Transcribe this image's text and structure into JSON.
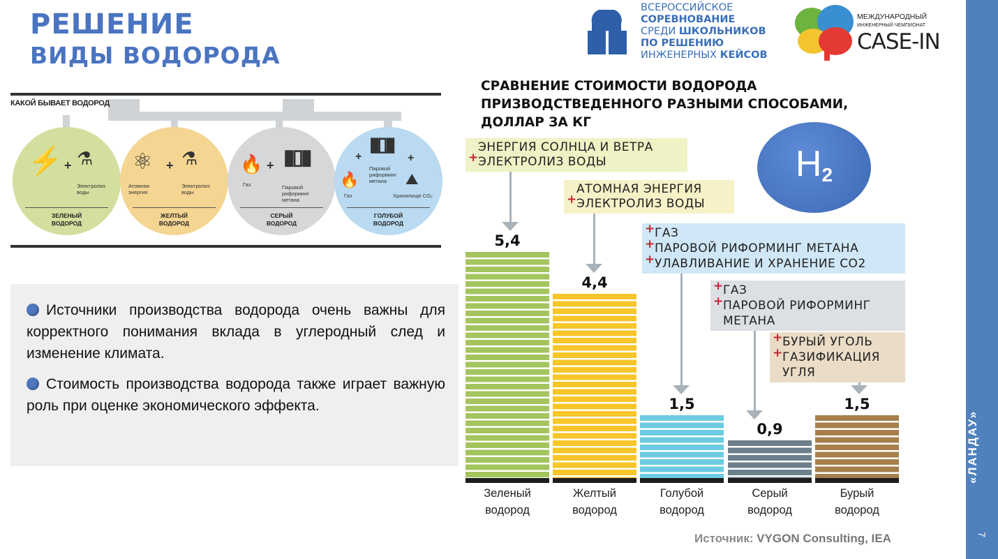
{
  "header": {
    "title_line1": "РЕШЕНИЕ",
    "title_line2": "ВИДЫ ВОДОРОДА"
  },
  "logos": {
    "competition": [
      "ВСЕРОССИЙСКОЕ",
      "СОРЕВНОВАНИЕ",
      "СРЕДИ ",
      "ШКОЛЬНИКОВ",
      "ПО РЕШЕНИЮ",
      "ИНЖЕНЕРНЫХ ",
      "КЕЙСОВ"
    ],
    "casein": {
      "line1": "МЕЖДУНАРОДНЫЙ",
      "line2": "ИНЖЕНЕРНЫЙ ЧЕМПИОНАТ",
      "line3": "CASE-IN"
    }
  },
  "sidebar": {
    "label": "«ЛАНДАУ»",
    "page": "7"
  },
  "infographic": {
    "title": "КАКОЙ БЫВАЕТ ВОДОРОД",
    "types": [
      {
        "name_l1": "ЗЕЛЕНЫЙ",
        "name_l2": "ВОДОРОД",
        "color": "#d2df9e",
        "items": [
          "Электролиз воды"
        ]
      },
      {
        "name_l1": "ЖЕЛТЫЙ",
        "name_l2": "ВОДОРОД",
        "color": "#f5d592",
        "items": [
          "Атомная энергия",
          "Электролиз воды"
        ]
      },
      {
        "name_l1": "СЕРЫЙ",
        "name_l2": "ВОДОРОД",
        "color": "#d6d7d9",
        "items": [
          "Газ",
          "Паровой риформинг метана"
        ]
      },
      {
        "name_l1": "ГОЛУБОЙ",
        "name_l2": "ВОДОРОД",
        "color": "#b9daf0",
        "items": [
          "Газ",
          "Паровой риформинг метана",
          "Хранилище CO₂"
        ]
      }
    ]
  },
  "text": {
    "bullet1": "Источники производства водорода очень важны для корректного понимания вклада в углеродный след и изменение климата.",
    "bullet2": "Стоимость производства водорода также играет важную роль при оценке экономического эффекта."
  },
  "h2_badge": {
    "main": "H",
    "sub": "2"
  },
  "source": {
    "label": "Источник: ",
    "value": "VYGON Consulting, IEA"
  },
  "chart_data": {
    "type": "bar",
    "title": "СРАВНЕНИЕ СТОИМОСТИ ВОДОРОДА ПРИЗВОДСТВЕДЕННОГО РАЗНЫМИ СПОСОБАМИ, ДОЛЛАР ЗА КГ",
    "title_lines": [
      "СРАВНЕНИЕ СТОИМОСТИ ВОДОРОДА",
      "ПРИЗВОДСТВЕДЕННОГО РАЗНЫМИ СПОСОБАМИ,",
      "ДОЛЛАР ЗА КГ"
    ],
    "categories": [
      "Зеленый водород",
      "Желтый водород",
      "Голубой водород",
      "Серый водород",
      "Бурый водород"
    ],
    "category_lines": [
      [
        "Зеленый",
        "водород"
      ],
      [
        "Желтый",
        "водород"
      ],
      [
        "Голубой",
        "водород"
      ],
      [
        "Серый",
        "водород"
      ],
      [
        "Бурый",
        "водород"
      ]
    ],
    "values": [
      5.4,
      4.4,
      1.5,
      0.9,
      1.5
    ],
    "value_labels": [
      "5,4",
      "4,4",
      "1,5",
      "0,9",
      "1,5"
    ],
    "colors": [
      "#a4c45e",
      "#f8c52a",
      "#6ccbe2",
      "#6d7f8c",
      "#a67f4d"
    ],
    "annotations": [
      {
        "lines": [
          "ЭНЕРГИЯ СОЛНЦА И ВЕТРА",
          "ЭЛЕКТРОЛИЗ ВОДЫ"
        ],
        "bg": "#eef2c4"
      },
      {
        "lines": [
          "АТОМНАЯ ЭНЕРГИЯ",
          "ЭЛЕКТРОЛИЗ ВОДЫ"
        ],
        "bg": "#f6f1c7"
      },
      {
        "lines": [
          "ГАЗ",
          "ПАРОВОЙ РИФОРМИНГ МЕТАНА",
          "УЛАВЛИВАНИЕ И ХРАНЕНИЕ CO2"
        ],
        "bg": "#cfe7f6"
      },
      {
        "lines": [
          "ГАЗ",
          "ПАРОВОЙ РИФОРМИНГ",
          "МЕТАНА"
        ],
        "bg": "#dcdfe3"
      },
      {
        "lines": [
          "БУРЫЙ УГОЛЬ",
          "ГАЗИФИКАЦИЯ",
          "УГЛЯ"
        ],
        "bg": "#eadcc6"
      }
    ],
    "ylim": [
      0,
      5.4
    ],
    "grid": false
  }
}
